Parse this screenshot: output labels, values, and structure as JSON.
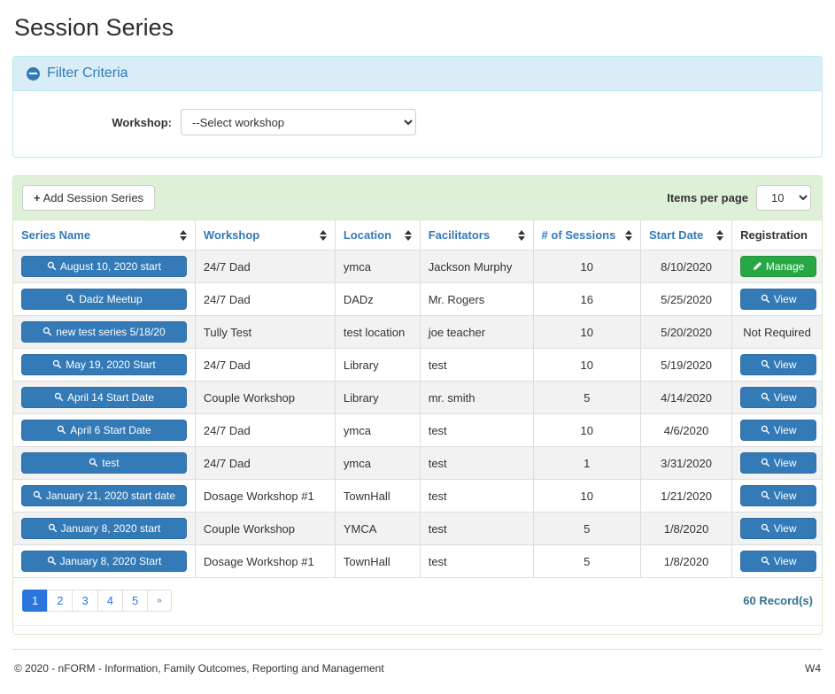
{
  "page": {
    "title": "Session Series"
  },
  "filter": {
    "title": "Filter Criteria",
    "collapse_icon": "minus-circle",
    "workshop_label": "Workshop:",
    "workshop_value": "--Select workshop"
  },
  "toolbar": {
    "add_icon": "+",
    "add_label": "Add Session Series",
    "items_per_page_label": "Items per page",
    "items_per_page_value": "10"
  },
  "table": {
    "columns": [
      {
        "label": "Series Name",
        "sortable": true
      },
      {
        "label": "Workshop",
        "sortable": true
      },
      {
        "label": "Location",
        "sortable": true
      },
      {
        "label": "Facilitators",
        "sortable": true
      },
      {
        "label": "# of Sessions",
        "sortable": true
      },
      {
        "label": "Start Date",
        "sortable": true
      },
      {
        "label": "Registration",
        "sortable": false
      }
    ],
    "rows": [
      {
        "series": "August 10, 2020 start",
        "workshop": "24/7 Dad",
        "location": "ymca",
        "facilitators": "Jackson Murphy",
        "sessions": "10",
        "start_date": "8/10/2020",
        "registration": {
          "type": "manage",
          "label": "Manage"
        }
      },
      {
        "series": "Dadz Meetup",
        "workshop": "24/7 Dad",
        "location": "DADz",
        "facilitators": "Mr. Rogers",
        "sessions": "16",
        "start_date": "5/25/2020",
        "registration": {
          "type": "view",
          "label": "View"
        }
      },
      {
        "series": "new test series 5/18/20",
        "workshop": "Tully Test",
        "location": "test location",
        "facilitators": "joe teacher",
        "sessions": "10",
        "start_date": "5/20/2020",
        "registration": {
          "type": "none",
          "label": "Not Required"
        }
      },
      {
        "series": "May 19, 2020 Start",
        "workshop": "24/7 Dad",
        "location": "Library",
        "facilitators": "test",
        "sessions": "10",
        "start_date": "5/19/2020",
        "registration": {
          "type": "view",
          "label": "View"
        }
      },
      {
        "series": "April 14 Start Date",
        "workshop": "Couple Workshop",
        "location": "Library",
        "facilitators": "mr. smith",
        "sessions": "5",
        "start_date": "4/14/2020",
        "registration": {
          "type": "view",
          "label": "View"
        }
      },
      {
        "series": "April 6 Start Date",
        "workshop": "24/7 Dad",
        "location": "ymca",
        "facilitators": "test",
        "sessions": "10",
        "start_date": "4/6/2020",
        "registration": {
          "type": "view",
          "label": "View"
        }
      },
      {
        "series": "test",
        "workshop": "24/7 Dad",
        "location": "ymca",
        "facilitators": "test",
        "sessions": "1",
        "start_date": "3/31/2020",
        "registration": {
          "type": "view",
          "label": "View"
        }
      },
      {
        "series": "January 21, 2020 start date",
        "workshop": "Dosage Workshop #1",
        "location": "TownHall",
        "facilitators": "test",
        "sessions": "10",
        "start_date": "1/21/2020",
        "registration": {
          "type": "view",
          "label": "View"
        }
      },
      {
        "series": "January 8, 2020 start",
        "workshop": "Couple Workshop",
        "location": "YMCA",
        "facilitators": "test",
        "sessions": "5",
        "start_date": "1/8/2020",
        "registration": {
          "type": "view",
          "label": "View"
        }
      },
      {
        "series": "January 8, 2020 Start",
        "workshop": "Dosage Workshop #1",
        "location": "TownHall",
        "facilitators": "test",
        "sessions": "5",
        "start_date": "1/8/2020",
        "registration": {
          "type": "view",
          "label": "View"
        }
      }
    ]
  },
  "pagination": {
    "pages": [
      "1",
      "2",
      "3",
      "4",
      "5",
      "»"
    ],
    "active_page": "1",
    "record_count": "60 Record(s)"
  },
  "footer": {
    "copyright": "© 2020 - nFORM - Information, Family Outcomes, Reporting and Management",
    "version": "W4"
  },
  "colors": {
    "primary_blue": "#337ab7",
    "primary_blue_border": "#2e6da4",
    "success_green": "#28a745",
    "pager_blue": "#2a76dd",
    "filter_header_bg": "#d9edf7",
    "filter_border": "#bce8f1",
    "table_header_bg": "#dff0d8",
    "table_panel_border": "#d6e9c6",
    "stripe_gray": "#f2f2f2",
    "record_count_color": "#31708f"
  },
  "icons": {
    "collapse": "minus-circle-icon",
    "sort": "sort-arrows-icon",
    "magnifier": "magnifier-icon",
    "pencil": "pencil-icon",
    "plus": "plus-icon"
  }
}
